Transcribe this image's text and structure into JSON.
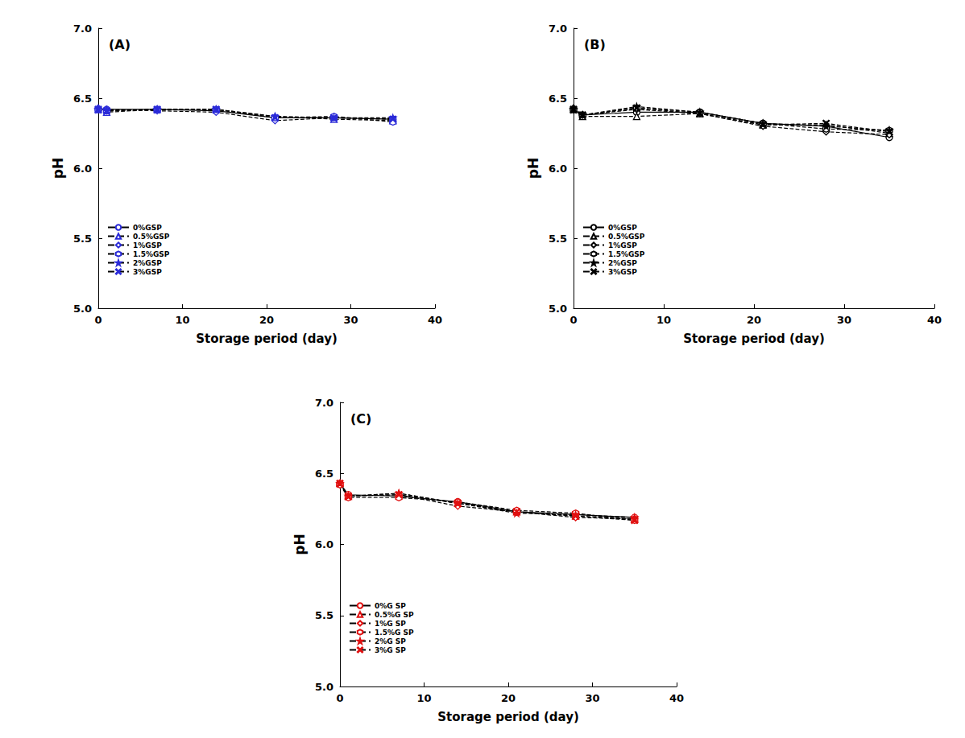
{
  "chart_data": [
    {
      "type": "line",
      "title": "(A)",
      "xlabel": "Storage period (day)",
      "ylabel": "pH",
      "x": [
        0,
        1,
        7,
        14,
        21,
        28,
        35
      ],
      "xlim": [
        0,
        40
      ],
      "xticks": [
        0,
        10,
        20,
        30,
        40
      ],
      "ylim": [
        5.0,
        7.0
      ],
      "yticks": [
        {
          "value": 5.0,
          "label": "5.0"
        },
        {
          "value": 5.5,
          "label": "5.5"
        },
        {
          "value": 6.0,
          "label": "6.0"
        },
        {
          "value": 6.5,
          "label": "6.5"
        },
        {
          "value": 7.0,
          "label": "7.0"
        }
      ],
      "grid": false,
      "legend": "lower left",
      "series": [
        {
          "name": "0%GSP",
          "color": "#2a2ad8",
          "marker": "circle",
          "line_style": "solid",
          "values": [
            6.42,
            6.42,
            6.42,
            6.41,
            6.36,
            6.36,
            6.35
          ]
        },
        {
          "name": "0.5%GSP",
          "color": "#2a2ad8",
          "marker": "triangle",
          "line_style": "dashed",
          "values": [
            6.42,
            6.4,
            6.42,
            6.42,
            6.37,
            6.35,
            6.34
          ]
        },
        {
          "name": "1%GSP",
          "color": "#2a2ad8",
          "marker": "diamond",
          "line_style": "dashed",
          "values": [
            6.43,
            6.42,
            6.41,
            6.4,
            6.34,
            6.36,
            6.35
          ]
        },
        {
          "name": "1.5%GSP",
          "color": "#2a2ad8",
          "marker": "hexagon",
          "line_style": "dashed",
          "values": [
            6.42,
            6.41,
            6.42,
            6.42,
            6.36,
            6.37,
            6.33
          ]
        },
        {
          "name": "2%GSP",
          "color": "#2a2ad8",
          "marker": "star",
          "line_style": "dashed",
          "values": [
            6.42,
            6.41,
            6.42,
            6.42,
            6.37,
            6.36,
            6.36
          ]
        },
        {
          "name": "3%GSP",
          "color": "#2a2ad8",
          "marker": "x",
          "line_style": "dashed",
          "values": [
            6.42,
            6.41,
            6.42,
            6.42,
            6.36,
            6.36,
            6.35
          ]
        }
      ]
    },
    {
      "type": "line",
      "title": "(B)",
      "xlabel": "Storage period (day)",
      "ylabel": "pH",
      "x": [
        0,
        1,
        7,
        14,
        21,
        28,
        35
      ],
      "xlim": [
        0,
        40
      ],
      "xticks": [
        0,
        10,
        20,
        30,
        40
      ],
      "ylim": [
        5.0,
        7.0
      ],
      "yticks": [
        {
          "value": 5.0,
          "label": "5.0"
        },
        {
          "value": 5.5,
          "label": "5.5"
        },
        {
          "value": 6.0,
          "label": "6.0"
        },
        {
          "value": 6.5,
          "label": "6.5"
        },
        {
          "value": 7.0,
          "label": "7.0"
        }
      ],
      "grid": false,
      "legend": "lower left",
      "series": [
        {
          "name": "0%GSP",
          "color": "#000000",
          "marker": "circle",
          "line_style": "solid",
          "values": [
            6.42,
            6.38,
            6.4,
            6.4,
            6.32,
            6.3,
            6.22
          ]
        },
        {
          "name": "0.5%GSP",
          "color": "#000000",
          "marker": "triangle",
          "line_style": "dashed",
          "values": [
            6.42,
            6.37,
            6.37,
            6.39,
            6.31,
            6.31,
            6.25
          ]
        },
        {
          "name": "1%GSP",
          "color": "#000000",
          "marker": "diamond",
          "line_style": "dashed",
          "values": [
            6.43,
            6.38,
            6.42,
            6.39,
            6.3,
            6.26,
            6.24
          ]
        },
        {
          "name": "1.5%GSP",
          "color": "#000000",
          "marker": "hexagon",
          "line_style": "dashed",
          "values": [
            6.42,
            6.38,
            6.43,
            6.4,
            6.32,
            6.28,
            6.27
          ]
        },
        {
          "name": "2%GSP",
          "color": "#000000",
          "marker": "star",
          "line_style": "dashed",
          "values": [
            6.42,
            6.38,
            6.44,
            6.4,
            6.32,
            6.3,
            6.27
          ]
        },
        {
          "name": "3%GSP",
          "color": "#000000",
          "marker": "x",
          "line_style": "dashed",
          "values": [
            6.42,
            6.38,
            6.43,
            6.39,
            6.31,
            6.32,
            6.26
          ]
        }
      ]
    },
    {
      "type": "line",
      "title": "(C)",
      "xlabel": "Storage period (day)",
      "ylabel": "pH",
      "x": [
        0,
        1,
        7,
        14,
        21,
        28,
        35
      ],
      "xlim": [
        0,
        40
      ],
      "xticks": [
        0,
        10,
        20,
        30,
        40
      ],
      "ylim": [
        5.0,
        7.0
      ],
      "yticks": [
        {
          "value": 5.0,
          "label": "5.0"
        },
        {
          "value": 5.5,
          "label": "5.5"
        },
        {
          "value": 6.0,
          "label": "6.0"
        },
        {
          "value": 6.5,
          "label": "6.5"
        },
        {
          "value": 7.0,
          "label": "7.0"
        }
      ],
      "grid": false,
      "legend": "lower left",
      "series": [
        {
          "name": "0%G SP",
          "color": "#e01010",
          "marker": "circle",
          "line_style": "solid",
          "values": [
            6.43,
            6.35,
            6.34,
            6.3,
            6.23,
            6.21,
            6.19
          ]
        },
        {
          "name": "0.5%G SP",
          "color": "#e01010",
          "marker": "triangle",
          "line_style": "dashed",
          "values": [
            6.43,
            6.34,
            6.36,
            6.29,
            6.23,
            6.2,
            6.18
          ]
        },
        {
          "name": "1%G SP",
          "color": "#e01010",
          "marker": "diamond",
          "line_style": "dashed",
          "values": [
            6.42,
            6.34,
            6.35,
            6.27,
            6.23,
            6.19,
            6.18
          ]
        },
        {
          "name": "1.5%G SP",
          "color": "#e01010",
          "marker": "hexagon",
          "line_style": "dashed",
          "values": [
            6.42,
            6.33,
            6.33,
            6.3,
            6.24,
            6.22,
            6.17
          ]
        },
        {
          "name": "2%G SP",
          "color": "#e01010",
          "marker": "star",
          "line_style": "dashed",
          "values": [
            6.43,
            6.34,
            6.36,
            6.29,
            6.22,
            6.21,
            6.19
          ]
        },
        {
          "name": "3%G SP",
          "color": "#e01010",
          "marker": "x",
          "line_style": "dashed",
          "values": [
            6.43,
            6.34,
            6.35,
            6.29,
            6.23,
            6.2,
            6.17
          ]
        }
      ]
    }
  ]
}
